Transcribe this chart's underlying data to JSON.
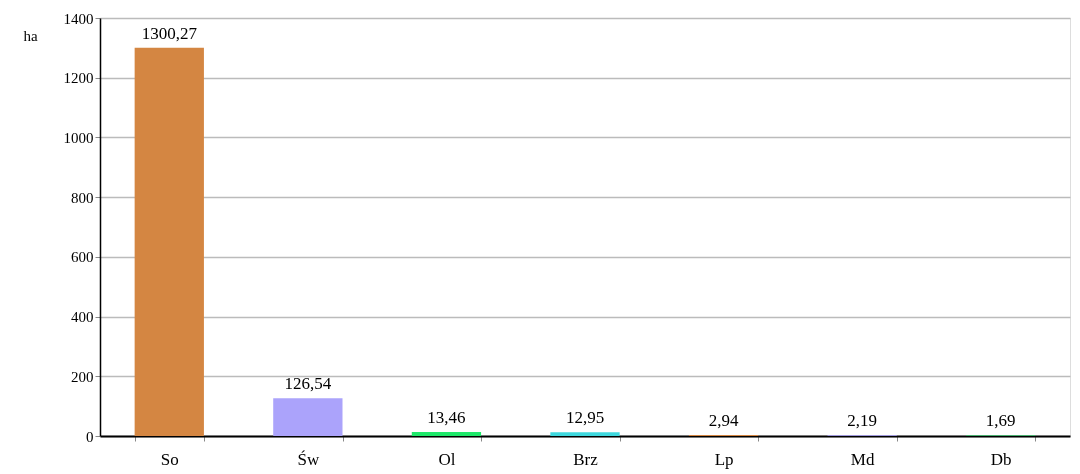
{
  "chart_data": {
    "type": "bar",
    "ylabel": "ha",
    "categories": [
      "So",
      "Św",
      "Ol",
      "Brz",
      "Lp",
      "Md",
      "Db"
    ],
    "values": [
      1300.27,
      126.54,
      13.46,
      12.95,
      2.94,
      2.19,
      1.69
    ],
    "colors": [
      "#d48642",
      "#aba3fb",
      "#1ee86a",
      "#3ed8de",
      "#d48642",
      "#aba3fb",
      "#1ee86a"
    ],
    "value_labels": [
      "1300,27",
      "126,54",
      "13,46",
      "12,95",
      "2,94",
      "2,19",
      "1,69"
    ],
    "ylim": [
      0,
      1400
    ],
    "yticks": [
      0,
      200,
      400,
      600,
      800,
      1000,
      1200,
      1400
    ],
    "grid": "y"
  }
}
